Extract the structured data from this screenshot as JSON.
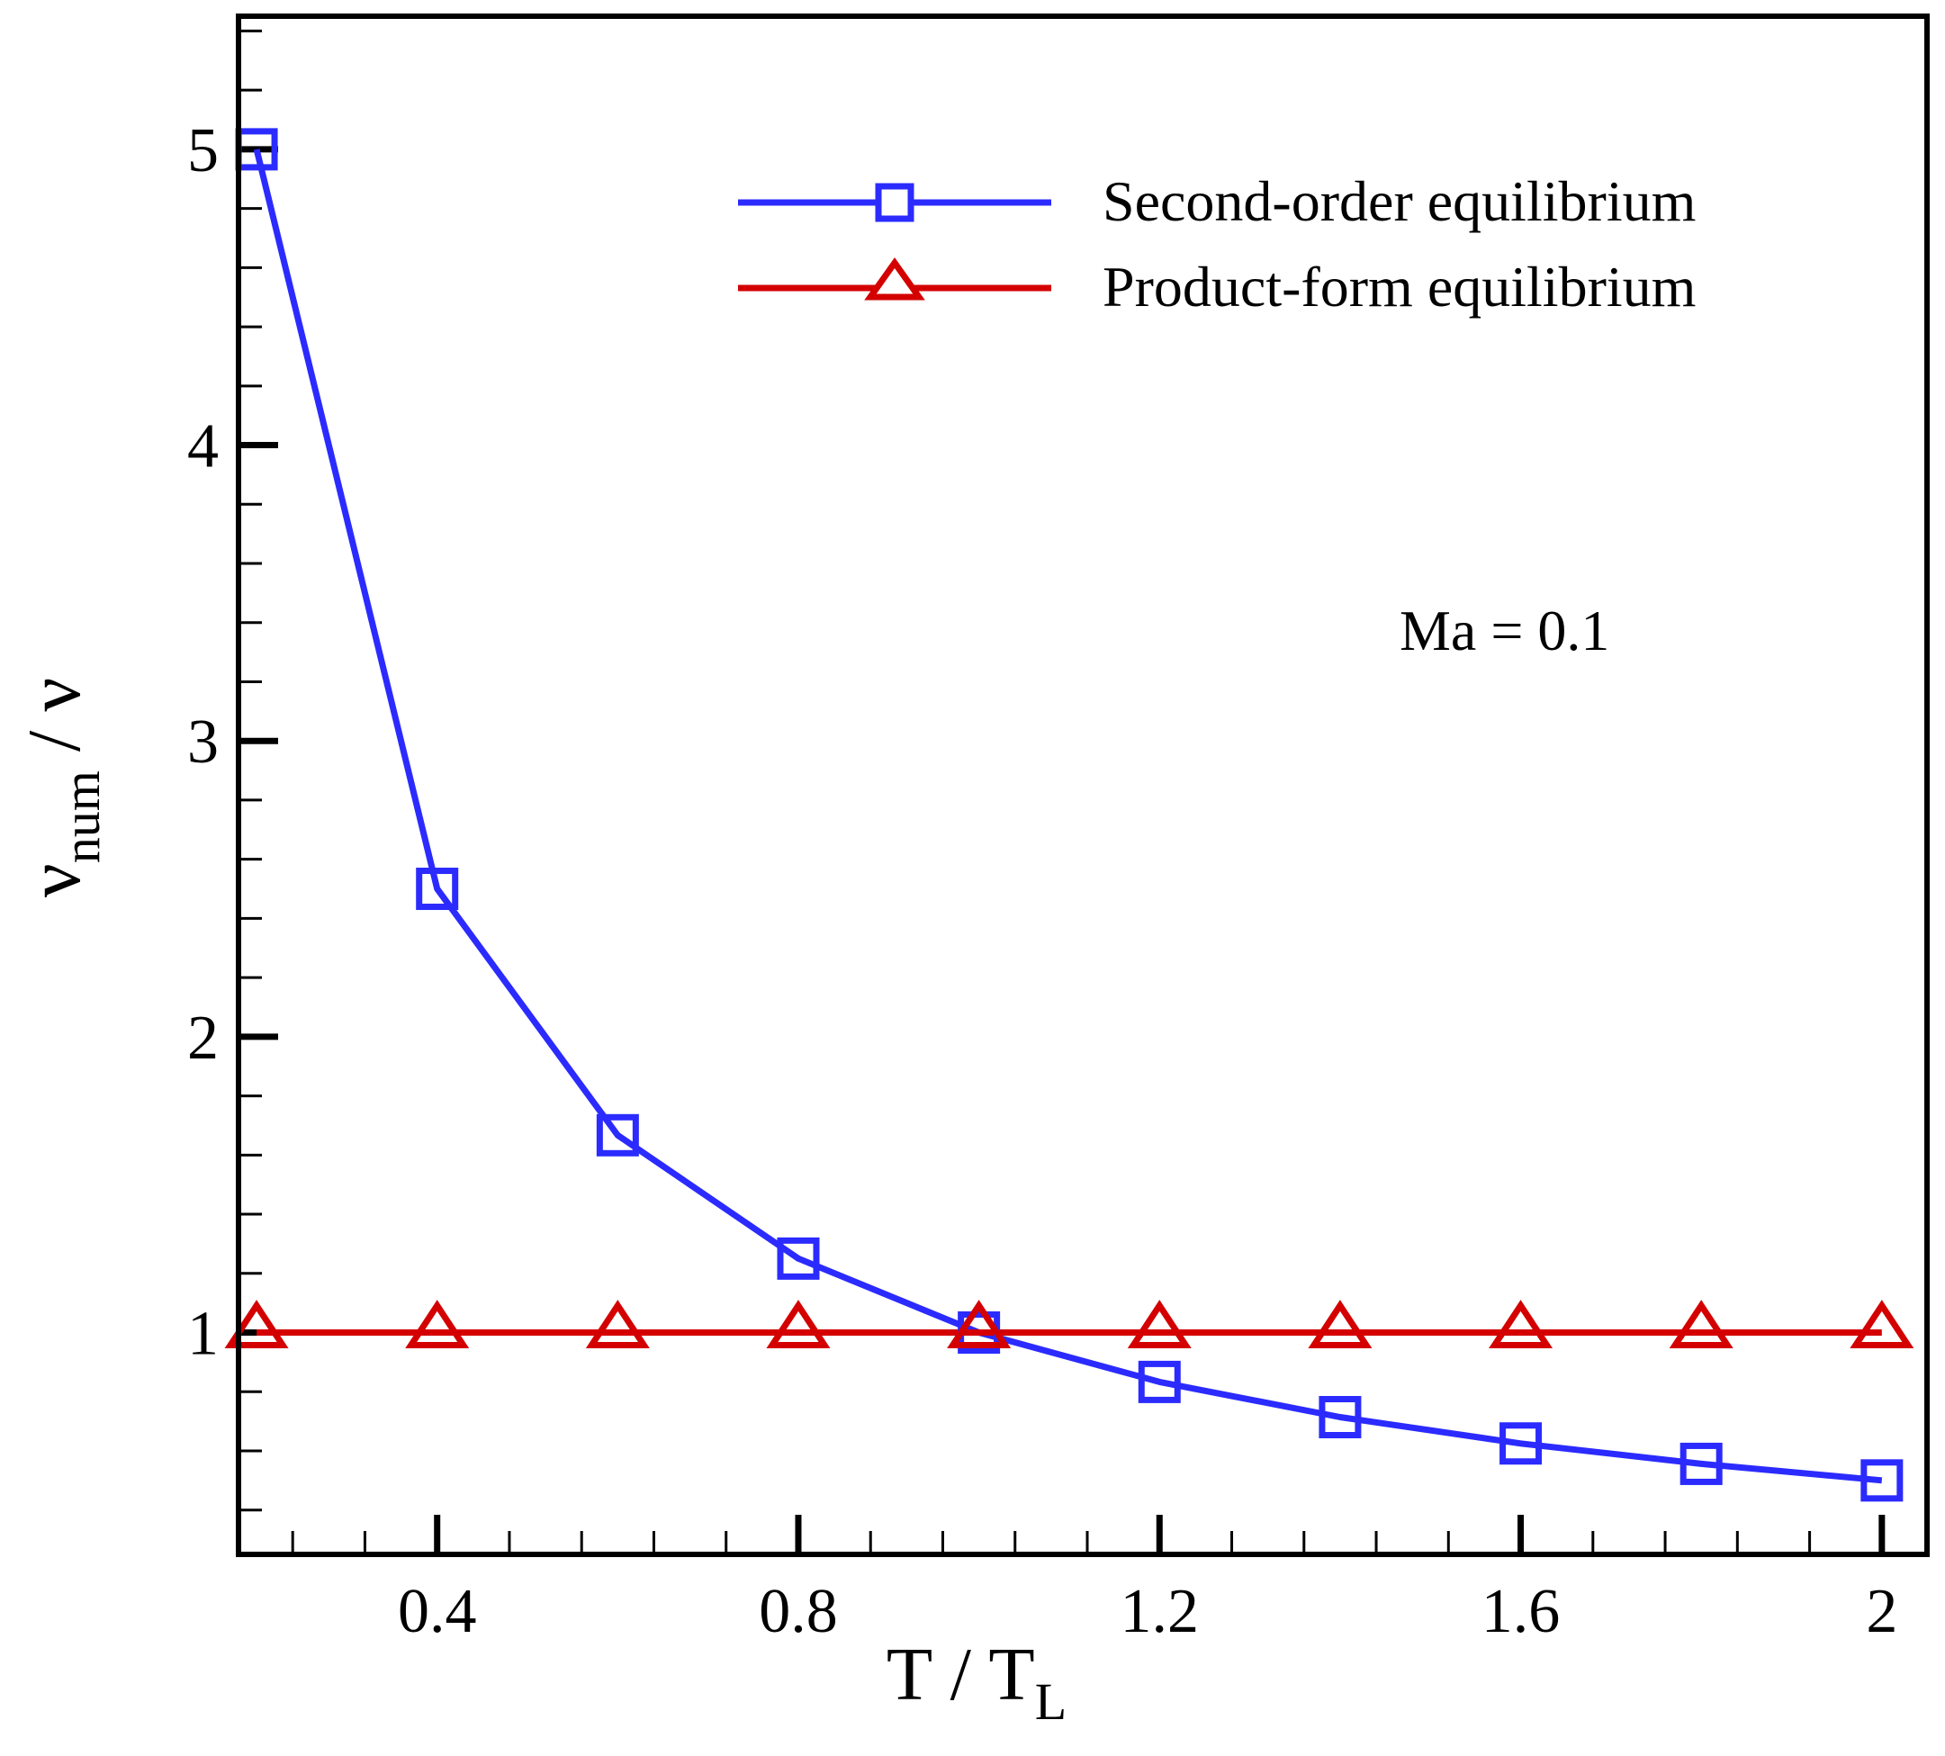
{
  "chart_data": {
    "type": "line",
    "title": "",
    "xlabel": "T / T",
    "xlabel_subscript": "L",
    "ylabel": "ν",
    "ylabel_subscript": "num",
    "ylabel_suffix": " / ν",
    "xlim": [
      0.18,
      2.05
    ],
    "ylim": [
      0.25,
      5.45
    ],
    "x_ticks": [
      0.4,
      0.8,
      1.2,
      1.6,
      2.0
    ],
    "x_tick_labels": [
      "0.4",
      "0.8",
      "1.2",
      "1.6",
      "2"
    ],
    "y_ticks": [
      1,
      2,
      3,
      4,
      5
    ],
    "y_tick_labels": [
      "1",
      "2",
      "3",
      "4",
      "5"
    ],
    "x_minor_step": 0.08,
    "y_minor_step": 0.2,
    "grid": false,
    "legend_position": "top-right",
    "annotation": "Ma = 0.1",
    "x": [
      0.2,
      0.4,
      0.6,
      0.8,
      1.0,
      1.2,
      1.4,
      1.6,
      1.8,
      2.0
    ],
    "series": [
      {
        "name": "Second-order equilibrium",
        "marker": "square",
        "color": "#2b2bff",
        "values": [
          5.0,
          2.5,
          1.667,
          1.25,
          1.0,
          0.833,
          0.714,
          0.625,
          0.556,
          0.5
        ]
      },
      {
        "name": "Product-form equilibrium",
        "marker": "triangle",
        "color": "#d40000",
        "values": [
          1,
          1,
          1,
          1,
          1,
          1,
          1,
          1,
          1,
          1
        ]
      }
    ]
  }
}
